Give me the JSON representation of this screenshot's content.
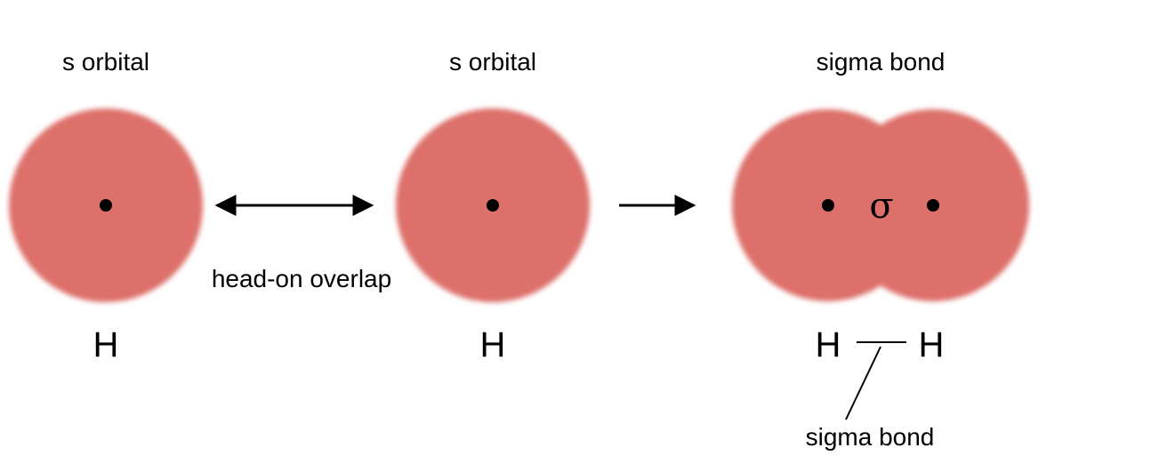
{
  "panels": [
    {
      "title": "s orbital",
      "atom": "H"
    },
    {
      "title": "s orbital",
      "atom": "H"
    },
    {
      "title": "sigma bond",
      "atoms": [
        "H",
        "H"
      ],
      "center_symbol": "σ"
    }
  ],
  "overlap_label": "head-on overlap",
  "bond_callout": "sigma bond",
  "colors": {
    "orbital_fill": "#dd6f6b",
    "nucleus": "#000000",
    "arrow": "#000000"
  }
}
